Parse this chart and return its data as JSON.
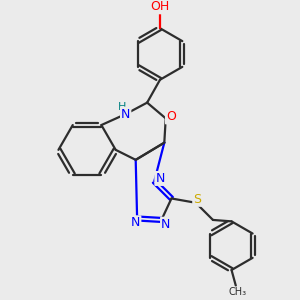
{
  "bg_color": "#ebebeb",
  "atom_colors": {
    "C": "#2d2d2d",
    "N": "#0000ff",
    "O": "#ff0000",
    "S": "#ccaa00",
    "H": "#008080"
  },
  "bond_color": "#2d2d2d",
  "bond_width": 1.6,
  "font_size": 9
}
